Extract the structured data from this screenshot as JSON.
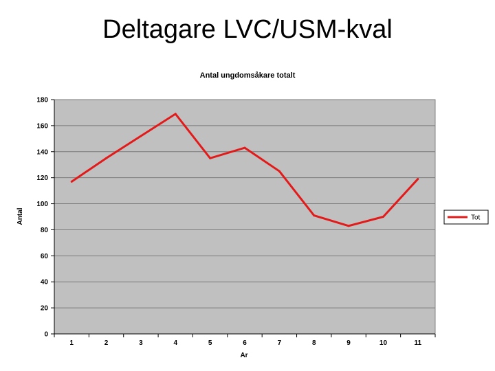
{
  "slide": {
    "title": "Deltagare LVC/USM-kval"
  },
  "chart_data": {
    "type": "line",
    "title": "Antal ungdomsåkare totalt",
    "xlabel": "Ar",
    "ylabel": "Antal",
    "categories": [
      "1",
      "2",
      "3",
      "4",
      "5",
      "6",
      "7",
      "8",
      "9",
      "10",
      "11"
    ],
    "series": [
      {
        "name": "Tot",
        "color": "#e31a1a",
        "values": [
          117,
          135,
          152,
          169,
          135,
          143,
          125,
          91,
          83,
          90,
          119
        ]
      }
    ],
    "ylim": [
      0,
      180
    ],
    "yticks": [
      0,
      20,
      40,
      60,
      80,
      100,
      120,
      140,
      160,
      180
    ],
    "grid": true,
    "legend": "right",
    "plot_background": "#c0c0c0"
  }
}
